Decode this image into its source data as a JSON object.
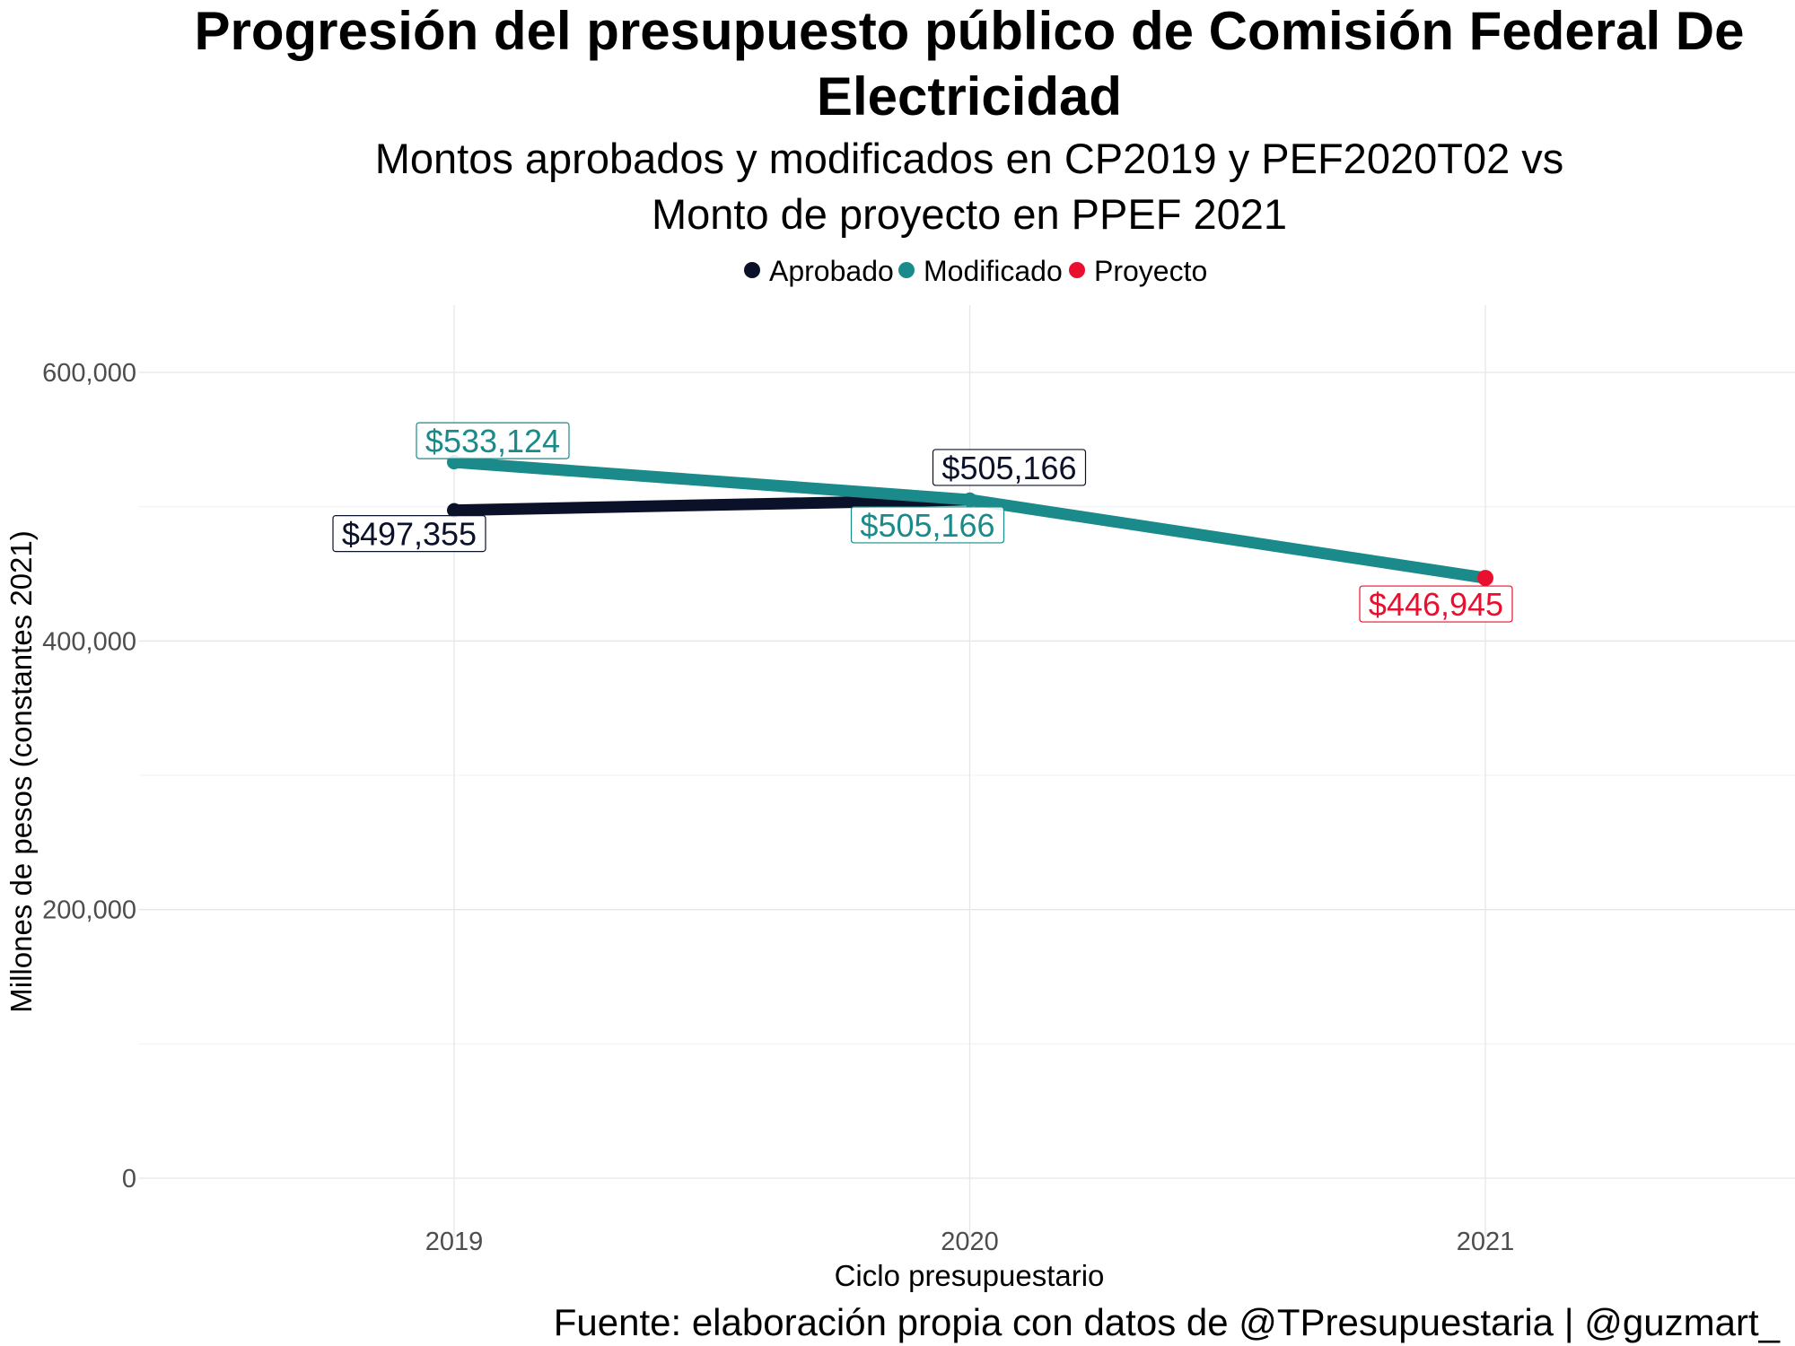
{
  "chart_data": {
    "type": "line",
    "title": "Progresión del presupuesto público de Comisión Federal De Electricidad",
    "title_lines": [
      "Progresión del presupuesto público de Comisión Federal De",
      "Electricidad"
    ],
    "subtitle_lines": [
      "Montos aprobados y modificados en CP2019 y PEF2020T02 vs",
      "Monto de proyecto en PPEF 2021"
    ],
    "xlabel": "Ciclo presupuestario",
    "ylabel": "Millones de pesos (constantes 2021)",
    "caption": "Fuente: elaboración propia con datos de @TPresupuestaria | @guzmart_",
    "x": [
      2019,
      2020,
      2021
    ],
    "ylim": [
      0,
      650000
    ],
    "y_ticks": [
      0,
      200000,
      400000,
      600000
    ],
    "y_tick_labels": [
      "0",
      "200,000",
      "400,000",
      "600,000"
    ],
    "x_tick_labels": [
      "2019",
      "2020",
      "2021"
    ],
    "grid": true,
    "legend_position": "top",
    "series": [
      {
        "name": "Aprobado",
        "color": "#0a1128",
        "x": [
          2019,
          2020
        ],
        "values": [
          497355,
          505166
        ],
        "labels": [
          "$497,355",
          "$505,166"
        ]
      },
      {
        "name": "Modificado",
        "color": "#1a8a8a",
        "x": [
          2019,
          2020,
          2021
        ],
        "values": [
          533124,
          505166,
          446945
        ],
        "labels": [
          "$533,124",
          "$505,166",
          ""
        ]
      },
      {
        "name": "Proyecto",
        "color": "#e8102e",
        "x": [
          2021
        ],
        "values": [
          446945
        ],
        "labels": [
          "$446,945"
        ]
      }
    ]
  }
}
